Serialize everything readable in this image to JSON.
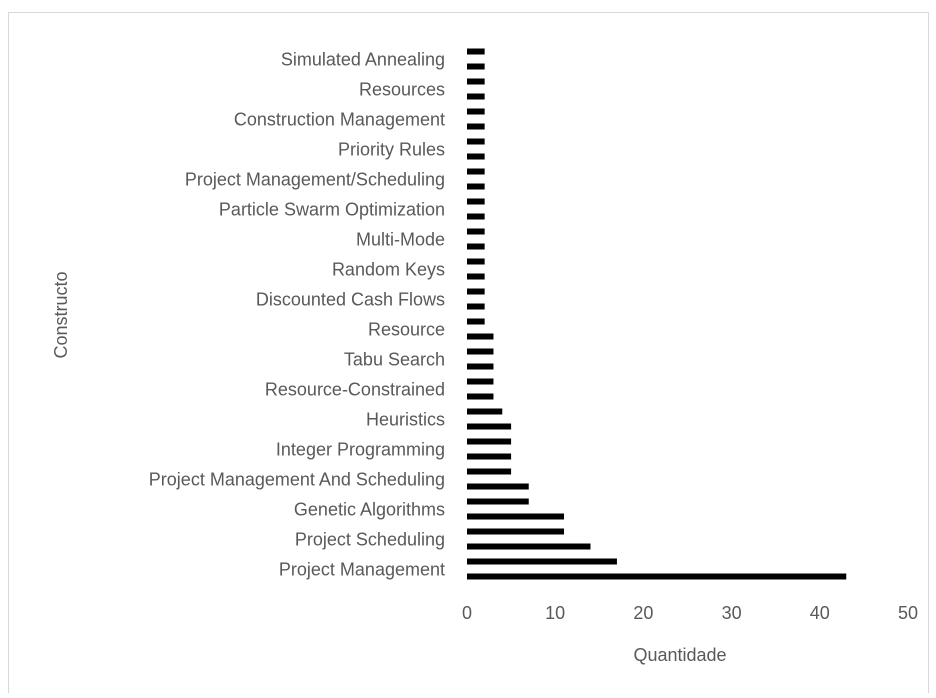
{
  "chart_data": {
    "type": "barh",
    "x_label": "Quantidade",
    "y_label": "Constructo",
    "categories": [
      "Project Management",
      null,
      "Project Scheduling",
      null,
      "Genetic Algorithms",
      null,
      "Project Management And Scheduling",
      null,
      "Integer Programming",
      null,
      "Heuristics",
      null,
      "Resource-Constrained",
      null,
      "Tabu Search",
      null,
      "Resource",
      null,
      "Discounted Cash Flows",
      null,
      "Random Keys",
      null,
      "Multi-Mode",
      null,
      "Particle Swarm Optimization",
      null,
      "Project Management/Scheduling",
      null,
      "Priority Rules",
      null,
      "Construction Management",
      null,
      "Resources",
      null,
      "Simulated Annealing",
      null
    ],
    "values": [
      43,
      17,
      14,
      11,
      11,
      7,
      7,
      5,
      5,
      5,
      5,
      4,
      3,
      3,
      3,
      3,
      3,
      2,
      2,
      2,
      2,
      2,
      2,
      2,
      2,
      2,
      2,
      2,
      2,
      2,
      2,
      2,
      2,
      2,
      2,
      2
    ],
    "color": "#000000",
    "xlim": [
      0,
      50
    ],
    "xticks": [
      0,
      10,
      20,
      30,
      40,
      50
    ]
  }
}
